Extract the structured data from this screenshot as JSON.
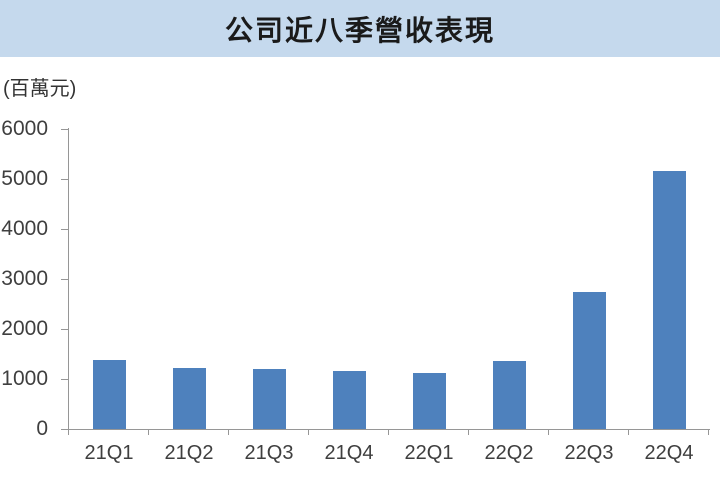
{
  "header": {
    "title": "公司近八季營收表現"
  },
  "chart_data": {
    "type": "bar",
    "title": "公司近八季營收表現",
    "unit_label": "(百萬元)",
    "xlabel": "",
    "ylabel": "(百萬元)",
    "categories": [
      "21Q1",
      "21Q2",
      "21Q3",
      "21Q4",
      "22Q1",
      "22Q2",
      "22Q3",
      "22Q4"
    ],
    "values": [
      1370,
      1210,
      1190,
      1150,
      1110,
      1350,
      2730,
      5150
    ],
    "series_name": "營收",
    "ylim": [
      0,
      6000
    ],
    "y_ticks": [
      0,
      1000,
      2000,
      3000,
      4000,
      5000,
      6000
    ],
    "grid": false,
    "legend_position": "none",
    "bar_color": "#4E81BD"
  },
  "colors": {
    "title_bar_bg": "#C5D9ED",
    "title_text": "#1a1a1a",
    "bar": "#4E81BD",
    "axis": "#969696",
    "tick_text": "#3f3f3f"
  }
}
